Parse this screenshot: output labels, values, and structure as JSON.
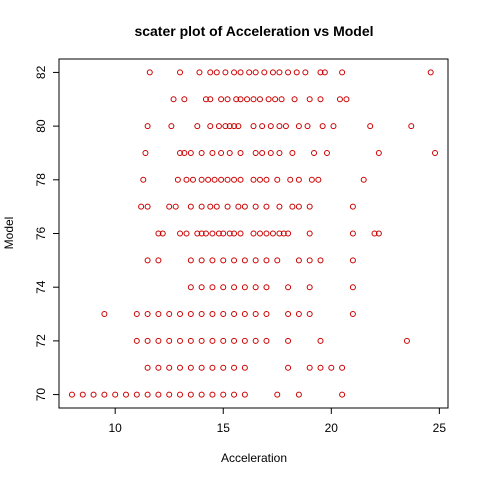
{
  "chart_data": {
    "type": "scatter",
    "title": "scater plot of Acceleration vs Model",
    "xlabel": "Acceleration",
    "ylabel": "Model",
    "xlim": [
      7.4,
      25.4
    ],
    "ylim": [
      69.5,
      82.5
    ],
    "x_ticks": [
      10,
      15,
      20,
      25
    ],
    "y_ticks": [
      70,
      72,
      74,
      76,
      78,
      80,
      82
    ],
    "point_color": "#cc0000",
    "grid": false,
    "series": [
      {
        "points": [
          [
            8,
            70
          ],
          [
            8.5,
            70
          ],
          [
            9,
            70
          ],
          [
            9.5,
            70
          ],
          [
            10,
            70
          ],
          [
            10.5,
            70
          ],
          [
            11,
            70
          ],
          [
            11.5,
            70
          ],
          [
            12,
            70
          ],
          [
            12.5,
            70
          ],
          [
            13,
            70
          ],
          [
            13.5,
            70
          ],
          [
            14,
            70
          ],
          [
            14.5,
            70
          ],
          [
            15,
            70
          ],
          [
            15.5,
            70
          ],
          [
            16,
            70
          ],
          [
            17.5,
            70
          ],
          [
            18.5,
            70
          ],
          [
            20.5,
            70
          ],
          [
            11.5,
            71
          ],
          [
            12,
            71
          ],
          [
            12.5,
            71
          ],
          [
            13,
            71
          ],
          [
            13.5,
            71
          ],
          [
            14,
            71
          ],
          [
            14.5,
            71
          ],
          [
            15,
            71
          ],
          [
            15.5,
            71
          ],
          [
            16,
            71
          ],
          [
            18,
            71
          ],
          [
            19,
            71
          ],
          [
            19.5,
            71
          ],
          [
            20,
            71
          ],
          [
            20.5,
            71
          ],
          [
            11,
            72
          ],
          [
            11.5,
            72
          ],
          [
            12,
            72
          ],
          [
            12.5,
            72
          ],
          [
            13,
            72
          ],
          [
            13.5,
            72
          ],
          [
            14,
            72
          ],
          [
            14.5,
            72
          ],
          [
            15,
            72
          ],
          [
            15.5,
            72
          ],
          [
            16,
            72
          ],
          [
            16.5,
            72
          ],
          [
            17,
            72
          ],
          [
            18,
            72
          ],
          [
            19.5,
            72
          ],
          [
            23.5,
            72
          ],
          [
            9.5,
            73
          ],
          [
            11,
            73
          ],
          [
            11.5,
            73
          ],
          [
            12,
            73
          ],
          [
            12.5,
            73
          ],
          [
            13,
            73
          ],
          [
            13.5,
            73
          ],
          [
            14,
            73
          ],
          [
            14.5,
            73
          ],
          [
            15,
            73
          ],
          [
            15.5,
            73
          ],
          [
            16,
            73
          ],
          [
            16.5,
            73
          ],
          [
            17,
            73
          ],
          [
            18,
            73
          ],
          [
            18.5,
            73
          ],
          [
            19,
            73
          ],
          [
            21,
            73
          ],
          [
            13.5,
            74
          ],
          [
            14,
            74
          ],
          [
            14.5,
            74
          ],
          [
            15,
            74
          ],
          [
            15.5,
            74
          ],
          [
            16,
            74
          ],
          [
            16.5,
            74
          ],
          [
            17,
            74
          ],
          [
            18,
            74
          ],
          [
            19,
            74
          ],
          [
            21,
            74
          ],
          [
            11.5,
            75
          ],
          [
            12,
            75
          ],
          [
            13.5,
            75
          ],
          [
            14,
            75
          ],
          [
            14.5,
            75
          ],
          [
            15,
            75
          ],
          [
            15.5,
            75
          ],
          [
            16,
            75
          ],
          [
            16.5,
            75
          ],
          [
            17,
            75
          ],
          [
            17.5,
            75
          ],
          [
            18.5,
            75
          ],
          [
            19,
            75
          ],
          [
            19.5,
            75
          ],
          [
            21,
            75
          ],
          [
            12,
            76
          ],
          [
            12.2,
            76
          ],
          [
            13,
            76
          ],
          [
            13.3,
            76
          ],
          [
            13.8,
            76
          ],
          [
            14,
            76
          ],
          [
            14.2,
            76
          ],
          [
            14.5,
            76
          ],
          [
            14.8,
            76
          ],
          [
            15,
            76
          ],
          [
            15.3,
            76
          ],
          [
            15.5,
            76
          ],
          [
            15.8,
            76
          ],
          [
            16.4,
            76
          ],
          [
            16.7,
            76
          ],
          [
            17,
            76
          ],
          [
            17.3,
            76
          ],
          [
            17.6,
            76
          ],
          [
            17.8,
            76
          ],
          [
            18,
            76
          ],
          [
            19,
            76
          ],
          [
            21,
            76
          ],
          [
            22,
            76
          ],
          [
            22.2,
            76
          ],
          [
            11.2,
            77
          ],
          [
            11.5,
            77
          ],
          [
            12.5,
            77
          ],
          [
            12.8,
            77
          ],
          [
            13.5,
            77
          ],
          [
            14,
            77
          ],
          [
            14.4,
            77
          ],
          [
            14.7,
            77
          ],
          [
            15.2,
            77
          ],
          [
            15.7,
            77
          ],
          [
            16,
            77
          ],
          [
            16.5,
            77
          ],
          [
            17,
            77
          ],
          [
            17.6,
            77
          ],
          [
            18.2,
            77
          ],
          [
            18.5,
            77
          ],
          [
            19,
            77
          ],
          [
            21,
            77
          ],
          [
            11.3,
            78
          ],
          [
            12.9,
            78
          ],
          [
            13.3,
            78
          ],
          [
            13.6,
            78
          ],
          [
            14,
            78
          ],
          [
            14.3,
            78
          ],
          [
            14.6,
            78
          ],
          [
            14.9,
            78
          ],
          [
            15.2,
            78
          ],
          [
            15.5,
            78
          ],
          [
            15.8,
            78
          ],
          [
            16.4,
            78
          ],
          [
            16.7,
            78
          ],
          [
            17,
            78
          ],
          [
            17.5,
            78
          ],
          [
            18.1,
            78
          ],
          [
            18.5,
            78
          ],
          [
            19.1,
            78
          ],
          [
            19.4,
            78
          ],
          [
            21.5,
            78
          ],
          [
            11.4,
            79
          ],
          [
            13,
            79
          ],
          [
            13.2,
            79
          ],
          [
            13.5,
            79
          ],
          [
            14,
            79
          ],
          [
            14.5,
            79
          ],
          [
            14.9,
            79
          ],
          [
            15.3,
            79
          ],
          [
            15.8,
            79
          ],
          [
            16.5,
            79
          ],
          [
            16.8,
            79
          ],
          [
            17.2,
            79
          ],
          [
            17.6,
            79
          ],
          [
            18.2,
            79
          ],
          [
            19.2,
            79
          ],
          [
            19.8,
            79
          ],
          [
            22.2,
            79
          ],
          [
            24.8,
            79
          ],
          [
            11.5,
            80
          ],
          [
            12.6,
            80
          ],
          [
            13.8,
            80
          ],
          [
            14.4,
            80
          ],
          [
            14.8,
            80
          ],
          [
            15.1,
            80
          ],
          [
            15.3,
            80
          ],
          [
            15.5,
            80
          ],
          [
            15.7,
            80
          ],
          [
            16.4,
            80
          ],
          [
            16.8,
            80
          ],
          [
            17.2,
            80
          ],
          [
            17.6,
            80
          ],
          [
            17.9,
            80
          ],
          [
            18.5,
            80
          ],
          [
            18.9,
            80
          ],
          [
            19.6,
            80
          ],
          [
            20.1,
            80
          ],
          [
            21.8,
            80
          ],
          [
            23.7,
            80
          ],
          [
            12.7,
            81
          ],
          [
            13.2,
            81
          ],
          [
            14.2,
            81
          ],
          [
            14.4,
            81
          ],
          [
            14.9,
            81
          ],
          [
            15.2,
            81
          ],
          [
            15.6,
            81
          ],
          [
            15.8,
            81
          ],
          [
            16.1,
            81
          ],
          [
            16.4,
            81
          ],
          [
            16.7,
            81
          ],
          [
            17.1,
            81
          ],
          [
            17.4,
            81
          ],
          [
            17.7,
            81
          ],
          [
            18.3,
            81
          ],
          [
            19,
            81
          ],
          [
            19.5,
            81
          ],
          [
            20.4,
            81
          ],
          [
            20.7,
            81
          ],
          [
            11.6,
            82
          ],
          [
            13,
            82
          ],
          [
            13.9,
            82
          ],
          [
            14.4,
            82
          ],
          [
            14.7,
            82
          ],
          [
            15.1,
            82
          ],
          [
            15.5,
            82
          ],
          [
            15.8,
            82
          ],
          [
            16.2,
            82
          ],
          [
            16.5,
            82
          ],
          [
            16.9,
            82
          ],
          [
            17.3,
            82
          ],
          [
            17.6,
            82
          ],
          [
            18,
            82
          ],
          [
            18.4,
            82
          ],
          [
            18.8,
            82
          ],
          [
            19.5,
            82
          ],
          [
            19.7,
            82
          ],
          [
            20.5,
            82
          ],
          [
            24.6,
            82
          ]
        ]
      }
    ]
  }
}
